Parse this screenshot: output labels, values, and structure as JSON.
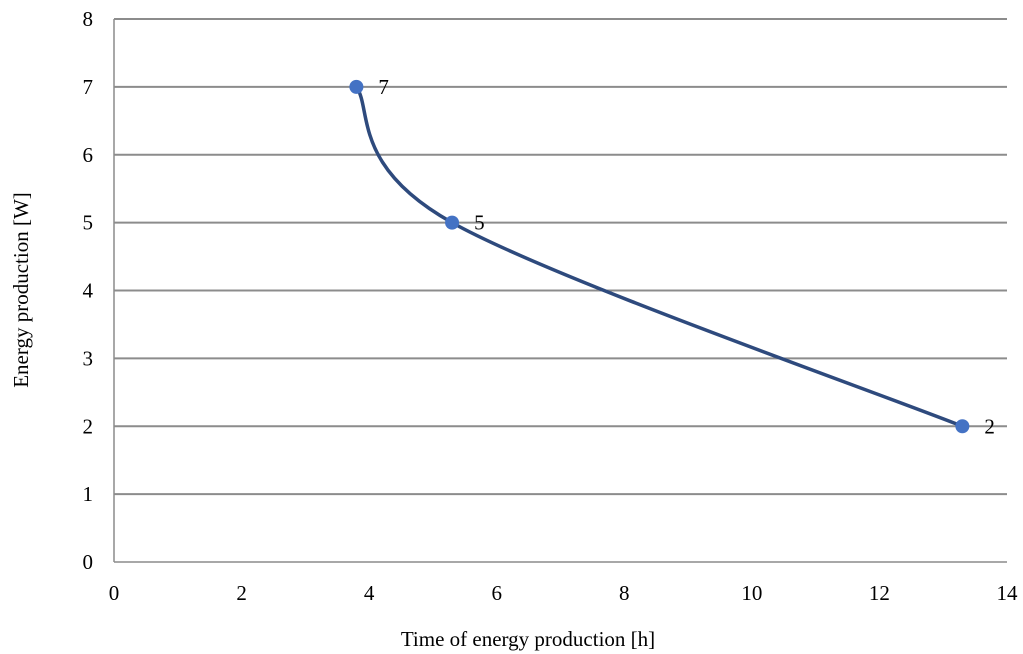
{
  "chart_data": {
    "type": "line",
    "title": "",
    "xlabel": "Time of energy production [h]",
    "ylabel": "Energy production [W]",
    "xlim": [
      0,
      14
    ],
    "ylim": [
      0,
      8
    ],
    "x_ticks": [
      0,
      2,
      4,
      6,
      8,
      10,
      12,
      14
    ],
    "y_ticks": [
      0,
      1,
      2,
      3,
      4,
      5,
      6,
      7,
      8
    ],
    "grid": "horizontal",
    "legend": "none",
    "smooth": true,
    "series": [
      {
        "points": [
          {
            "x": 3.8,
            "y": 7,
            "label": "7"
          },
          {
            "x": 5.3,
            "y": 5,
            "label": "5"
          },
          {
            "x": 13.3,
            "y": 2,
            "label": "2"
          }
        ],
        "line_color": "#2E4A7D",
        "marker_color": "#4472C4"
      }
    ]
  }
}
